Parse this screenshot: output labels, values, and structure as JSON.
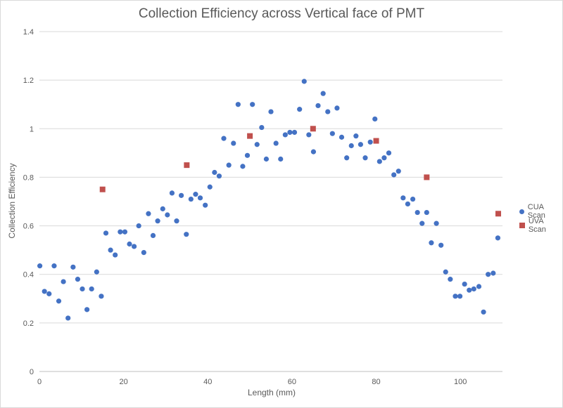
{
  "chart_data": {
    "type": "scatter",
    "title": "Collection Efficiency across Vertical face of PMT",
    "xlabel": "Length (mm)",
    "ylabel": "Collection Efficiency",
    "xlim": [
      0,
      110
    ],
    "ylim": [
      0,
      1.4
    ],
    "x_ticks": [
      "0",
      "20",
      "40",
      "60",
      "80",
      "100"
    ],
    "y_ticks": [
      "0",
      "0.2",
      "0.4",
      "0.6",
      "0.8",
      "1",
      "1.2",
      "1.4"
    ],
    "grid": "horizontal",
    "legend_position": "right",
    "series": [
      {
        "name": "CUA Scan",
        "color": "#4472C4",
        "marker": "circle",
        "points": [
          [
            0.1,
            0.435
          ],
          [
            1.2,
            0.33
          ],
          [
            2.3,
            0.32
          ],
          [
            3.5,
            0.435
          ],
          [
            4.6,
            0.29
          ],
          [
            5.7,
            0.37
          ],
          [
            6.8,
            0.22
          ],
          [
            8.0,
            0.43
          ],
          [
            9.1,
            0.38
          ],
          [
            10.2,
            0.34
          ],
          [
            11.3,
            0.255
          ],
          [
            12.4,
            0.34
          ],
          [
            13.6,
            0.41
          ],
          [
            14.7,
            0.31
          ],
          [
            15.8,
            0.57
          ],
          [
            16.9,
            0.5
          ],
          [
            18.0,
            0.48
          ],
          [
            19.2,
            0.575
          ],
          [
            20.3,
            0.575
          ],
          [
            21.4,
            0.525
          ],
          [
            22.5,
            0.515
          ],
          [
            23.6,
            0.6
          ],
          [
            24.8,
            0.49
          ],
          [
            25.9,
            0.65
          ],
          [
            27.0,
            0.56
          ],
          [
            28.1,
            0.62
          ],
          [
            29.3,
            0.67
          ],
          [
            30.4,
            0.645
          ],
          [
            31.5,
            0.735
          ],
          [
            32.6,
            0.62
          ],
          [
            33.7,
            0.725
          ],
          [
            34.9,
            0.565
          ],
          [
            36.0,
            0.71
          ],
          [
            37.1,
            0.73
          ],
          [
            38.2,
            0.715
          ],
          [
            39.4,
            0.685
          ],
          [
            40.5,
            0.76
          ],
          [
            41.6,
            0.82
          ],
          [
            42.7,
            0.805
          ],
          [
            43.8,
            0.96
          ],
          [
            45.0,
            0.85
          ],
          [
            46.1,
            0.94
          ],
          [
            47.2,
            1.1
          ],
          [
            48.3,
            0.845
          ],
          [
            49.4,
            0.89
          ],
          [
            50.6,
            1.1
          ],
          [
            51.7,
            0.935
          ],
          [
            52.8,
            1.005
          ],
          [
            53.9,
            0.875
          ],
          [
            55.0,
            1.07
          ],
          [
            56.2,
            0.94
          ],
          [
            57.3,
            0.875
          ],
          [
            58.4,
            0.975
          ],
          [
            59.5,
            0.985
          ],
          [
            60.6,
            0.985
          ],
          [
            61.8,
            1.08
          ],
          [
            62.9,
            1.195
          ],
          [
            64.0,
            0.975
          ],
          [
            65.1,
            0.905
          ],
          [
            66.2,
            1.095
          ],
          [
            67.4,
            1.145
          ],
          [
            68.5,
            1.07
          ],
          [
            69.6,
            0.98
          ],
          [
            70.7,
            1.085
          ],
          [
            71.8,
            0.965
          ],
          [
            73.0,
            0.88
          ],
          [
            74.1,
            0.93
          ],
          [
            75.2,
            0.97
          ],
          [
            76.3,
            0.935
          ],
          [
            77.4,
            0.88
          ],
          [
            78.6,
            0.945
          ],
          [
            79.7,
            1.04
          ],
          [
            80.8,
            0.865
          ],
          [
            81.9,
            0.88
          ],
          [
            83.0,
            0.9
          ],
          [
            84.2,
            0.81
          ],
          [
            85.3,
            0.825
          ],
          [
            86.4,
            0.715
          ],
          [
            87.5,
            0.69
          ],
          [
            88.7,
            0.71
          ],
          [
            89.8,
            0.655
          ],
          [
            90.9,
            0.61
          ],
          [
            92.0,
            0.655
          ],
          [
            93.1,
            0.53
          ],
          [
            94.3,
            0.61
          ],
          [
            95.4,
            0.52
          ],
          [
            96.5,
            0.41
          ],
          [
            97.6,
            0.38
          ],
          [
            98.8,
            0.31
          ],
          [
            99.9,
            0.31
          ],
          [
            101.0,
            0.36
          ],
          [
            102.1,
            0.335
          ],
          [
            103.2,
            0.34
          ],
          [
            104.4,
            0.35
          ],
          [
            105.5,
            0.245
          ],
          [
            106.6,
            0.4
          ],
          [
            107.8,
            0.405
          ],
          [
            108.9,
            0.55
          ]
        ]
      },
      {
        "name": "UVA Scan",
        "color": "#C0504D",
        "marker": "square",
        "points": [
          [
            15,
            0.75
          ],
          [
            35,
            0.85
          ],
          [
            50,
            0.97
          ],
          [
            65,
            1.0
          ],
          [
            80,
            0.95
          ],
          [
            92,
            0.8
          ],
          [
            109,
            0.65
          ]
        ]
      }
    ]
  }
}
